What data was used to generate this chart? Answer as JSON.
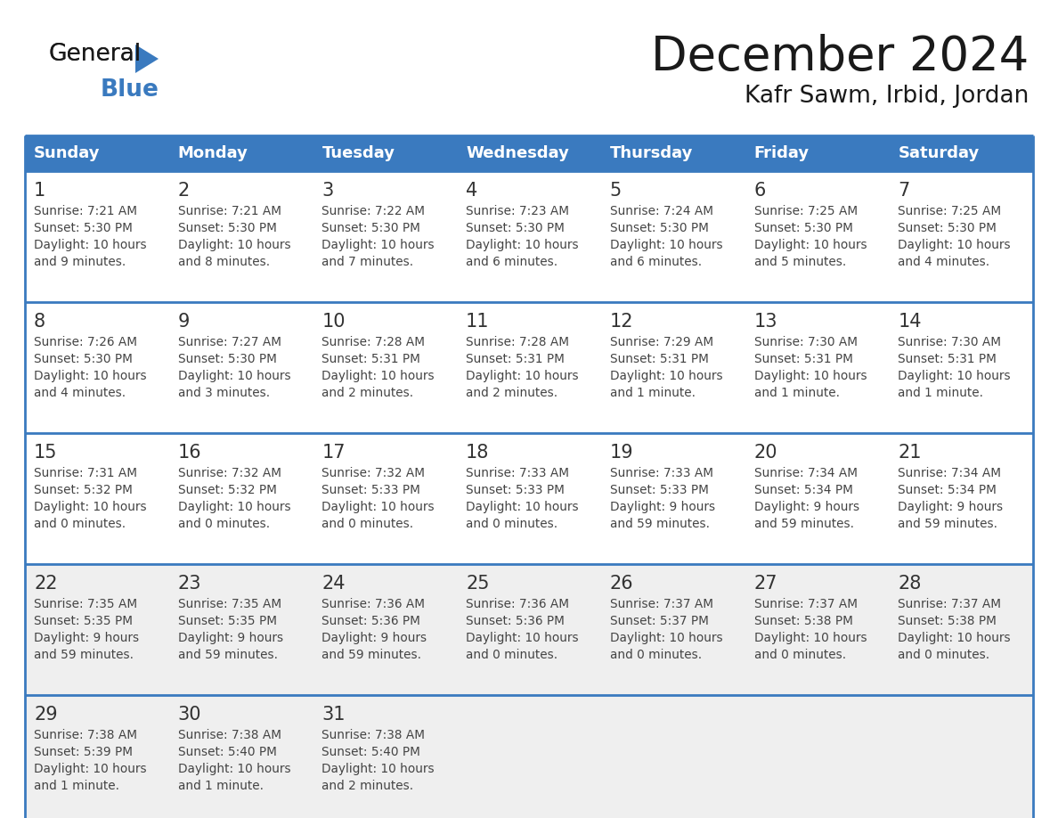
{
  "title": "December 2024",
  "subtitle": "Kafr Sawm, Irbid, Jordan",
  "days_of_week": [
    "Sunday",
    "Monday",
    "Tuesday",
    "Wednesday",
    "Thursday",
    "Friday",
    "Saturday"
  ],
  "header_bg": "#3a7abf",
  "header_text": "#ffffff",
  "cell_bg_white": "#ffffff",
  "cell_bg_gray": "#efefef",
  "row_backgrounds": [
    "#ffffff",
    "#ffffff",
    "#ffffff",
    "#efefef",
    "#efefef"
  ],
  "border_color": "#3a7abf",
  "text_color": "#444444",
  "day_num_color": "#333333",
  "logo_black": "#222222",
  "logo_blue": "#3a7abf",
  "calendar": [
    [
      {
        "day": 1,
        "sunrise": "7:21 AM",
        "sunset": "5:30 PM",
        "daylight": "10 hours and 9 minutes."
      },
      {
        "day": 2,
        "sunrise": "7:21 AM",
        "sunset": "5:30 PM",
        "daylight": "10 hours and 8 minutes."
      },
      {
        "day": 3,
        "sunrise": "7:22 AM",
        "sunset": "5:30 PM",
        "daylight": "10 hours and 7 minutes."
      },
      {
        "day": 4,
        "sunrise": "7:23 AM",
        "sunset": "5:30 PM",
        "daylight": "10 hours and 6 minutes."
      },
      {
        "day": 5,
        "sunrise": "7:24 AM",
        "sunset": "5:30 PM",
        "daylight": "10 hours and 6 minutes."
      },
      {
        "day": 6,
        "sunrise": "7:25 AM",
        "sunset": "5:30 PM",
        "daylight": "10 hours and 5 minutes."
      },
      {
        "day": 7,
        "sunrise": "7:25 AM",
        "sunset": "5:30 PM",
        "daylight": "10 hours and 4 minutes."
      }
    ],
    [
      {
        "day": 8,
        "sunrise": "7:26 AM",
        "sunset": "5:30 PM",
        "daylight": "10 hours and 4 minutes."
      },
      {
        "day": 9,
        "sunrise": "7:27 AM",
        "sunset": "5:30 PM",
        "daylight": "10 hours and 3 minutes."
      },
      {
        "day": 10,
        "sunrise": "7:28 AM",
        "sunset": "5:31 PM",
        "daylight": "10 hours and 2 minutes."
      },
      {
        "day": 11,
        "sunrise": "7:28 AM",
        "sunset": "5:31 PM",
        "daylight": "10 hours and 2 minutes."
      },
      {
        "day": 12,
        "sunrise": "7:29 AM",
        "sunset": "5:31 PM",
        "daylight": "10 hours and 1 minute."
      },
      {
        "day": 13,
        "sunrise": "7:30 AM",
        "sunset": "5:31 PM",
        "daylight": "10 hours and 1 minute."
      },
      {
        "day": 14,
        "sunrise": "7:30 AM",
        "sunset": "5:31 PM",
        "daylight": "10 hours and 1 minute."
      }
    ],
    [
      {
        "day": 15,
        "sunrise": "7:31 AM",
        "sunset": "5:32 PM",
        "daylight": "10 hours and 0 minutes."
      },
      {
        "day": 16,
        "sunrise": "7:32 AM",
        "sunset": "5:32 PM",
        "daylight": "10 hours and 0 minutes."
      },
      {
        "day": 17,
        "sunrise": "7:32 AM",
        "sunset": "5:33 PM",
        "daylight": "10 hours and 0 minutes."
      },
      {
        "day": 18,
        "sunrise": "7:33 AM",
        "sunset": "5:33 PM",
        "daylight": "10 hours and 0 minutes."
      },
      {
        "day": 19,
        "sunrise": "7:33 AM",
        "sunset": "5:33 PM",
        "daylight": "9 hours and 59 minutes."
      },
      {
        "day": 20,
        "sunrise": "7:34 AM",
        "sunset": "5:34 PM",
        "daylight": "9 hours and 59 minutes."
      },
      {
        "day": 21,
        "sunrise": "7:34 AM",
        "sunset": "5:34 PM",
        "daylight": "9 hours and 59 minutes."
      }
    ],
    [
      {
        "day": 22,
        "sunrise": "7:35 AM",
        "sunset": "5:35 PM",
        "daylight": "9 hours and 59 minutes."
      },
      {
        "day": 23,
        "sunrise": "7:35 AM",
        "sunset": "5:35 PM",
        "daylight": "9 hours and 59 minutes."
      },
      {
        "day": 24,
        "sunrise": "7:36 AM",
        "sunset": "5:36 PM",
        "daylight": "9 hours and 59 minutes."
      },
      {
        "day": 25,
        "sunrise": "7:36 AM",
        "sunset": "5:36 PM",
        "daylight": "10 hours and 0 minutes."
      },
      {
        "day": 26,
        "sunrise": "7:37 AM",
        "sunset": "5:37 PM",
        "daylight": "10 hours and 0 minutes."
      },
      {
        "day": 27,
        "sunrise": "7:37 AM",
        "sunset": "5:38 PM",
        "daylight": "10 hours and 0 minutes."
      },
      {
        "day": 28,
        "sunrise": "7:37 AM",
        "sunset": "5:38 PM",
        "daylight": "10 hours and 0 minutes."
      }
    ],
    [
      {
        "day": 29,
        "sunrise": "7:38 AM",
        "sunset": "5:39 PM",
        "daylight": "10 hours and 1 minute."
      },
      {
        "day": 30,
        "sunrise": "7:38 AM",
        "sunset": "5:40 PM",
        "daylight": "10 hours and 1 minute."
      },
      {
        "day": 31,
        "sunrise": "7:38 AM",
        "sunset": "5:40 PM",
        "daylight": "10 hours and 2 minutes."
      },
      null,
      null,
      null,
      null
    ]
  ]
}
